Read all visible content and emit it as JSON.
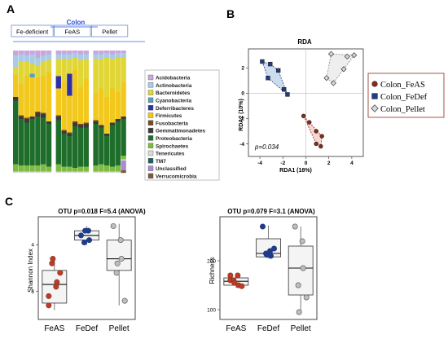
{
  "panels": {
    "a": {
      "label": "A"
    },
    "b": {
      "label": "B"
    },
    "c": {
      "label": "C"
    }
  },
  "chart_data": [
    {
      "type": "bar",
      "stacked": true,
      "panel": "A",
      "group_header": "Colon",
      "groups": [
        {
          "label": "Fe-deficient",
          "n": 7
        },
        {
          "label": "FeAS",
          "n": 6
        },
        {
          "label": "Pellet",
          "n": 6
        }
      ],
      "legend": {
        "placement": "right",
        "items": [
          {
            "name": "Acidobacteria",
            "color": "#c9a6dc"
          },
          {
            "name": "Actinobacteria",
            "color": "#a9cbe5"
          },
          {
            "name": "Bacteroidetes",
            "color": "#e0d636"
          },
          {
            "name": "Cyanobacteria",
            "color": "#5aa0b5"
          },
          {
            "name": "Deferribacteres",
            "color": "#2f2fa6"
          },
          {
            "name": "Firmicutes",
            "color": "#f2c81c"
          },
          {
            "name": "Fusobacteria",
            "color": "#7a4a1a"
          },
          {
            "name": "Gemmatimonadetes",
            "color": "#3a3a3a"
          },
          {
            "name": "Proteobacteria",
            "color": "#1f6d2a"
          },
          {
            "name": "Spirochaetes",
            "color": "#7dbb42"
          },
          {
            "name": "Tenericutes",
            "color": "#d9d9d9"
          },
          {
            "name": "TM7",
            "color": "#1f5f5f"
          },
          {
            "name": "Unclassified",
            "color": "#a98bd1"
          },
          {
            "name": "Verrucomicrobia",
            "color": "#7a5a3a"
          }
        ]
      },
      "samples": [
        {
          "group": 0,
          "values": [
            0.04,
            0.1,
            0.06,
            0.0,
            0.0,
            0.18,
            0.0,
            0.03,
            0.52,
            0.06,
            0.01,
            0.0,
            0.0,
            0.0
          ]
        },
        {
          "group": 0,
          "values": [
            0.03,
            0.06,
            0.18,
            0.0,
            0.0,
            0.26,
            0.01,
            0.02,
            0.38,
            0.05,
            0.01,
            0.0,
            0.0,
            0.0
          ]
        },
        {
          "group": 0,
          "values": [
            0.04,
            0.05,
            0.12,
            0.0,
            0.0,
            0.34,
            0.01,
            0.03,
            0.35,
            0.05,
            0.01,
            0.0,
            0.0,
            0.0
          ]
        },
        {
          "group": 0,
          "values": [
            0.03,
            0.08,
            0.08,
            0.03,
            0.0,
            0.32,
            0.0,
            0.02,
            0.38,
            0.05,
            0.01,
            0.0,
            0.0,
            0.0
          ]
        },
        {
          "group": 0,
          "values": [
            0.06,
            0.06,
            0.1,
            0.0,
            0.0,
            0.28,
            0.01,
            0.03,
            0.4,
            0.05,
            0.01,
            0.0,
            0.0,
            0.0
          ]
        },
        {
          "group": 0,
          "values": [
            0.04,
            0.05,
            0.12,
            0.0,
            0.0,
            0.3,
            0.01,
            0.03,
            0.38,
            0.06,
            0.01,
            0.0,
            0.0,
            0.0
          ]
        },
        {
          "group": 0,
          "values": [
            0.03,
            0.05,
            0.1,
            0.0,
            0.0,
            0.4,
            0.0,
            0.02,
            0.35,
            0.04,
            0.01,
            0.0,
            0.0,
            0.0
          ]
        },
        {
          "group": 1,
          "values": [
            0.03,
            0.04,
            0.14,
            0.0,
            0.1,
            0.22,
            0.01,
            0.03,
            0.36,
            0.06,
            0.01,
            0.0,
            0.0,
            0.0
          ]
        },
        {
          "group": 1,
          "values": [
            0.03,
            0.04,
            0.18,
            0.0,
            0.0,
            0.4,
            0.01,
            0.02,
            0.27,
            0.04,
            0.01,
            0.0,
            0.0,
            0.0
          ]
        },
        {
          "group": 1,
          "values": [
            0.03,
            0.04,
            0.12,
            0.0,
            0.18,
            0.3,
            0.01,
            0.02,
            0.25,
            0.04,
            0.01,
            0.0,
            0.0,
            0.0
          ]
        },
        {
          "group": 1,
          "values": [
            0.02,
            0.04,
            0.1,
            0.0,
            0.0,
            0.42,
            0.01,
            0.03,
            0.34,
            0.03,
            0.01,
            0.0,
            0.0,
            0.0
          ]
        },
        {
          "group": 1,
          "values": [
            0.03,
            0.05,
            0.22,
            0.0,
            0.0,
            0.3,
            0.01,
            0.02,
            0.32,
            0.04,
            0.01,
            0.0,
            0.0,
            0.0
          ]
        },
        {
          "group": 1,
          "values": [
            0.03,
            0.04,
            0.16,
            0.0,
            0.0,
            0.36,
            0.01,
            0.03,
            0.32,
            0.04,
            0.01,
            0.0,
            0.0,
            0.0
          ]
        },
        {
          "group": 2,
          "values": [
            0.03,
            0.04,
            0.28,
            0.0,
            0.0,
            0.22,
            0.01,
            0.02,
            0.34,
            0.05,
            0.01,
            0.0,
            0.0,
            0.0
          ]
        },
        {
          "group": 2,
          "values": [
            0.03,
            0.04,
            0.24,
            0.0,
            0.0,
            0.3,
            0.0,
            0.02,
            0.3,
            0.06,
            0.01,
            0.0,
            0.0,
            0.0
          ]
        },
        {
          "group": 2,
          "values": [
            0.02,
            0.04,
            0.32,
            0.0,
            0.0,
            0.3,
            0.0,
            0.02,
            0.24,
            0.05,
            0.01,
            0.0,
            0.0,
            0.0
          ]
        },
        {
          "group": 2,
          "values": [
            0.03,
            0.04,
            0.24,
            0.0,
            0.0,
            0.28,
            0.0,
            0.02,
            0.34,
            0.04,
            0.01,
            0.0,
            0.0,
            0.0
          ]
        },
        {
          "group": 2,
          "values": [
            0.02,
            0.04,
            0.28,
            0.0,
            0.0,
            0.22,
            0.0,
            0.02,
            0.36,
            0.05,
            0.01,
            0.0,
            0.0,
            0.0
          ]
        },
        {
          "group": 2,
          "values": [
            0.02,
            0.04,
            0.2,
            0.0,
            0.0,
            0.28,
            0.0,
            0.02,
            0.3,
            0.03,
            0.01,
            0.0,
            0.08,
            0.02
          ]
        }
      ]
    },
    {
      "type": "scatter",
      "panel": "B",
      "title": "RDA",
      "xlabel": "RDA1 (18%)",
      "ylabel": "RDA2 (10%)",
      "xlim": [
        -5,
        5
      ],
      "ylim": [
        -5,
        3.5
      ],
      "xticks": [
        -4,
        -2,
        0,
        2,
        4
      ],
      "yticks": [
        -4,
        -2,
        0,
        2
      ],
      "annotation": "p=0.034",
      "legend_placement": "right",
      "series": [
        {
          "name": "Colon_FeAS",
          "color": "#8b2a1a",
          "hull_color": "#f4c9c2",
          "marker": "circle",
          "points": [
            [
              -0.2,
              -1.8
            ],
            [
              0.3,
              -2.3
            ],
            [
              0.9,
              -3.0
            ],
            [
              1.4,
              -3.4
            ],
            [
              0.9,
              -4.0
            ],
            [
              1.3,
              -4.2
            ]
          ]
        },
        {
          "name": "Colon_FeDef",
          "color": "#1f3b8a",
          "hull_color": "#bcd0e6",
          "marker": "square",
          "points": [
            [
              -3.8,
              2.5
            ],
            [
              -3.1,
              2.3
            ],
            [
              -2.4,
              1.8
            ],
            [
              -3.3,
              1.2
            ],
            [
              -1.6,
              -0.1
            ],
            [
              -1.9,
              0.3
            ]
          ]
        },
        {
          "name": "Colon_Pellet",
          "color": "#888888",
          "hull_color": "#e8e8e8",
          "marker": "diamond",
          "points": [
            [
              2.2,
              3.1
            ],
            [
              3.6,
              2.9
            ],
            [
              4.2,
              3.0
            ],
            [
              1.8,
              1.2
            ],
            [
              3.3,
              1.9
            ],
            [
              2.4,
              0.8
            ]
          ]
        }
      ]
    },
    {
      "type": "box",
      "panel": "C",
      "title": "OTU p=0.018 F=5.4 (ANOVA)",
      "ylabel": "Shannon Index",
      "ylim": [
        2.4,
        4.6
      ],
      "yticks": [
        3,
        4
      ],
      "categories": [
        "FeAS",
        "FeDef",
        "Pellet"
      ],
      "series": [
        {
          "name": "FeAS",
          "color": "#c0392b",
          "outline": "#7a3a1a",
          "points": [
            2.9,
            3.1,
            3.2,
            3.6,
            3.7,
            3.4,
            2.7
          ],
          "q1": 2.75,
          "median": 3.15,
          "q3": 3.45,
          "whisker_low": 2.6,
          "whisker_high": 3.75
        },
        {
          "name": "FeDef",
          "color": "#1f3b8a",
          "outline": "#1f3b8a",
          "points": [
            4.2,
            4.3,
            4.1,
            4.05,
            4.3
          ],
          "q1": 4.1,
          "median": 4.2,
          "q3": 4.3,
          "whisker_low": 4.0,
          "whisker_high": 4.4
        },
        {
          "name": "Pellet",
          "color": "#bdbdbd",
          "outline": "#555555",
          "points": [
            4.4,
            4.1,
            3.7,
            3.4,
            3.6,
            2.8
          ],
          "q1": 3.45,
          "median": 3.7,
          "q3": 4.1,
          "whisker_low": 2.7,
          "whisker_high": 4.45
        }
      ]
    },
    {
      "type": "box",
      "panel": "C",
      "title": "OTU p=0.079 F=3.1 (ANOVA)",
      "ylabel": "Richness",
      "ylim": [
        80,
        290
      ],
      "yticks": [
        100,
        200
      ],
      "categories": [
        "FeAS",
        "FeDef",
        "Pellet"
      ],
      "series": [
        {
          "name": "FeAS",
          "color": "#c0392b",
          "outline": "#7a3a1a",
          "points": [
            160,
            170,
            150,
            160,
            155,
            148,
            170
          ],
          "q1": 150,
          "median": 158,
          "q3": 165,
          "whisker_low": 145,
          "whisker_high": 172
        },
        {
          "name": "FeDef",
          "color": "#1f3b8a",
          "outline": "#1f3b8a",
          "points": [
            270,
            220,
            210,
            215,
            212,
            225
          ],
          "q1": 208,
          "median": 215,
          "q3": 245,
          "whisker_low": 205,
          "whisker_high": 272
        },
        {
          "name": "Pellet",
          "color": "#bdbdbd",
          "outline": "#555555",
          "points": [
            270,
            240,
            185,
            150,
            95,
            125
          ],
          "q1": 130,
          "median": 185,
          "q3": 230,
          "whisker_low": 95,
          "whisker_high": 270
        }
      ]
    }
  ]
}
